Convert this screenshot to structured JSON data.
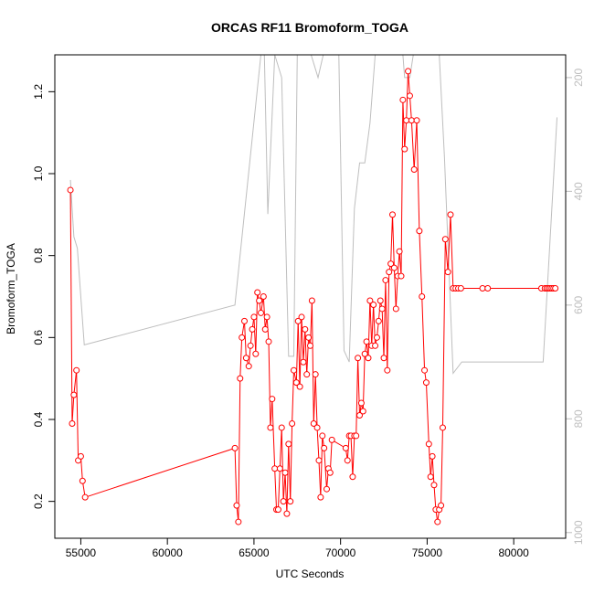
{
  "chart_data": {
    "type": "line",
    "title": "ORCAS RF11 Bromoform_TOGA",
    "xlabel": "UTC Seconds",
    "ylabel": "Bromoform_TOGA",
    "xlim": [
      53500,
      83000
    ],
    "ylim": [
      0.11,
      1.29
    ],
    "x_ticks": [
      55000,
      60000,
      65000,
      70000,
      75000,
      80000
    ],
    "y_ticks": [
      0.2,
      0.4,
      0.6,
      0.8,
      1.0,
      1.2
    ],
    "y2_ticks": [
      200,
      400,
      600,
      800,
      1000
    ],
    "y2lim": [
      1010,
      160
    ],
    "grid": false,
    "series": [
      {
        "color": "#ff0000",
        "marker": "open-circle",
        "x": [
          54400,
          54500,
          54600,
          54750,
          54850,
          55000,
          55100,
          55250,
          63900,
          64000,
          64100,
          64200,
          64300,
          64450,
          64550,
          64700,
          64800,
          64900,
          65000,
          65100,
          65200,
          65300,
          65400,
          65550,
          65650,
          65750,
          65850,
          65950,
          66050,
          66200,
          66300,
          66400,
          66500,
          66600,
          66700,
          66800,
          66900,
          67000,
          67100,
          67200,
          67300,
          67450,
          67550,
          67650,
          67750,
          67850,
          67950,
          68050,
          68150,
          68250,
          68350,
          68450,
          68550,
          68650,
          68750,
          68850,
          68950,
          69050,
          69200,
          69300,
          69400,
          69500,
          70300,
          70400,
          70500,
          70600,
          70700,
          70800,
          70900,
          71000,
          71100,
          71200,
          71300,
          71400,
          71500,
          71600,
          71700,
          71800,
          71900,
          72000,
          72100,
          72200,
          72300,
          72400,
          72500,
          72600,
          72700,
          72800,
          72900,
          73000,
          73100,
          73200,
          73300,
          73400,
          73500,
          73600,
          73700,
          73800,
          73900,
          74000,
          74100,
          74250,
          74400,
          74550,
          74700,
          74850,
          74950,
          75100,
          75200,
          75300,
          75400,
          75500,
          75600,
          75700,
          75800,
          75900,
          76050,
          76200,
          76350,
          76500,
          76650,
          76800,
          76950,
          78200,
          78500,
          81600,
          81800,
          81900,
          82000,
          82100,
          82200,
          82300,
          82400
        ],
        "y": [
          0.96,
          0.39,
          0.46,
          0.52,
          0.3,
          0.31,
          0.25,
          0.21,
          0.33,
          0.19,
          0.15,
          0.5,
          0.6,
          0.64,
          0.55,
          0.53,
          0.58,
          0.62,
          0.65,
          0.56,
          0.71,
          0.69,
          0.66,
          0.7,
          0.62,
          0.65,
          0.59,
          0.38,
          0.45,
          0.28,
          0.18,
          0.18,
          0.28,
          0.38,
          0.2,
          0.27,
          0.17,
          0.34,
          0.2,
          0.39,
          0.52,
          0.49,
          0.64,
          0.48,
          0.65,
          0.54,
          0.62,
          0.51,
          0.6,
          0.58,
          0.69,
          0.39,
          0.51,
          0.38,
          0.3,
          0.21,
          0.36,
          0.33,
          0.23,
          0.28,
          0.27,
          0.35,
          0.33,
          0.3,
          0.36,
          0.36,
          0.26,
          0.36,
          0.36,
          0.55,
          0.41,
          0.44,
          0.42,
          0.56,
          0.59,
          0.55,
          0.69,
          0.58,
          0.68,
          0.58,
          0.6,
          0.64,
          0.69,
          0.67,
          0.55,
          0.74,
          0.52,
          0.76,
          0.78,
          0.9,
          0.77,
          0.67,
          0.75,
          0.81,
          0.75,
          1.18,
          1.06,
          1.13,
          1.25,
          1.19,
          1.13,
          1.01,
          1.13,
          0.86,
          0.7,
          0.52,
          0.49,
          0.34,
          0.26,
          0.31,
          0.24,
          0.18,
          0.15,
          0.18,
          0.19,
          0.38,
          0.84,
          0.76,
          0.9,
          0.72,
          0.72,
          0.72,
          0.72,
          0.72,
          0.72,
          0.72,
          0.72,
          0.72,
          0.72,
          0.72,
          0.72,
          0.72,
          0.72
        ]
      },
      {
        "axis": "right",
        "color": "#bebebe",
        "marker": "none",
        "x": [
          54400,
          54600,
          54800,
          55200,
          63900,
          65400,
          65600,
          65800,
          66200,
          66600,
          67000,
          67300,
          67500,
          67700,
          67900,
          68100,
          68300,
          68700,
          69000,
          69300,
          69600,
          69900,
          70200,
          70500,
          70800,
          71100,
          71400,
          71700,
          72000,
          72300,
          72600,
          73300,
          73600,
          73700,
          73800,
          74000,
          74200,
          74500,
          74800,
          75200,
          75700,
          76000,
          76500,
          77000,
          77800,
          78500,
          81700,
          82500
        ],
        "y": [
          380,
          480,
          500,
          670,
          600,
          160,
          160,
          440,
          160,
          200,
          690,
          690,
          160,
          160,
          160,
          160,
          160,
          200,
          160,
          160,
          160,
          160,
          680,
          700,
          430,
          350,
          350,
          280,
          160,
          160,
          160,
          160,
          160,
          200,
          200,
          200,
          160,
          160,
          160,
          160,
          160,
          340,
          720,
          700,
          700,
          700,
          700,
          270
        ]
      }
    ]
  }
}
